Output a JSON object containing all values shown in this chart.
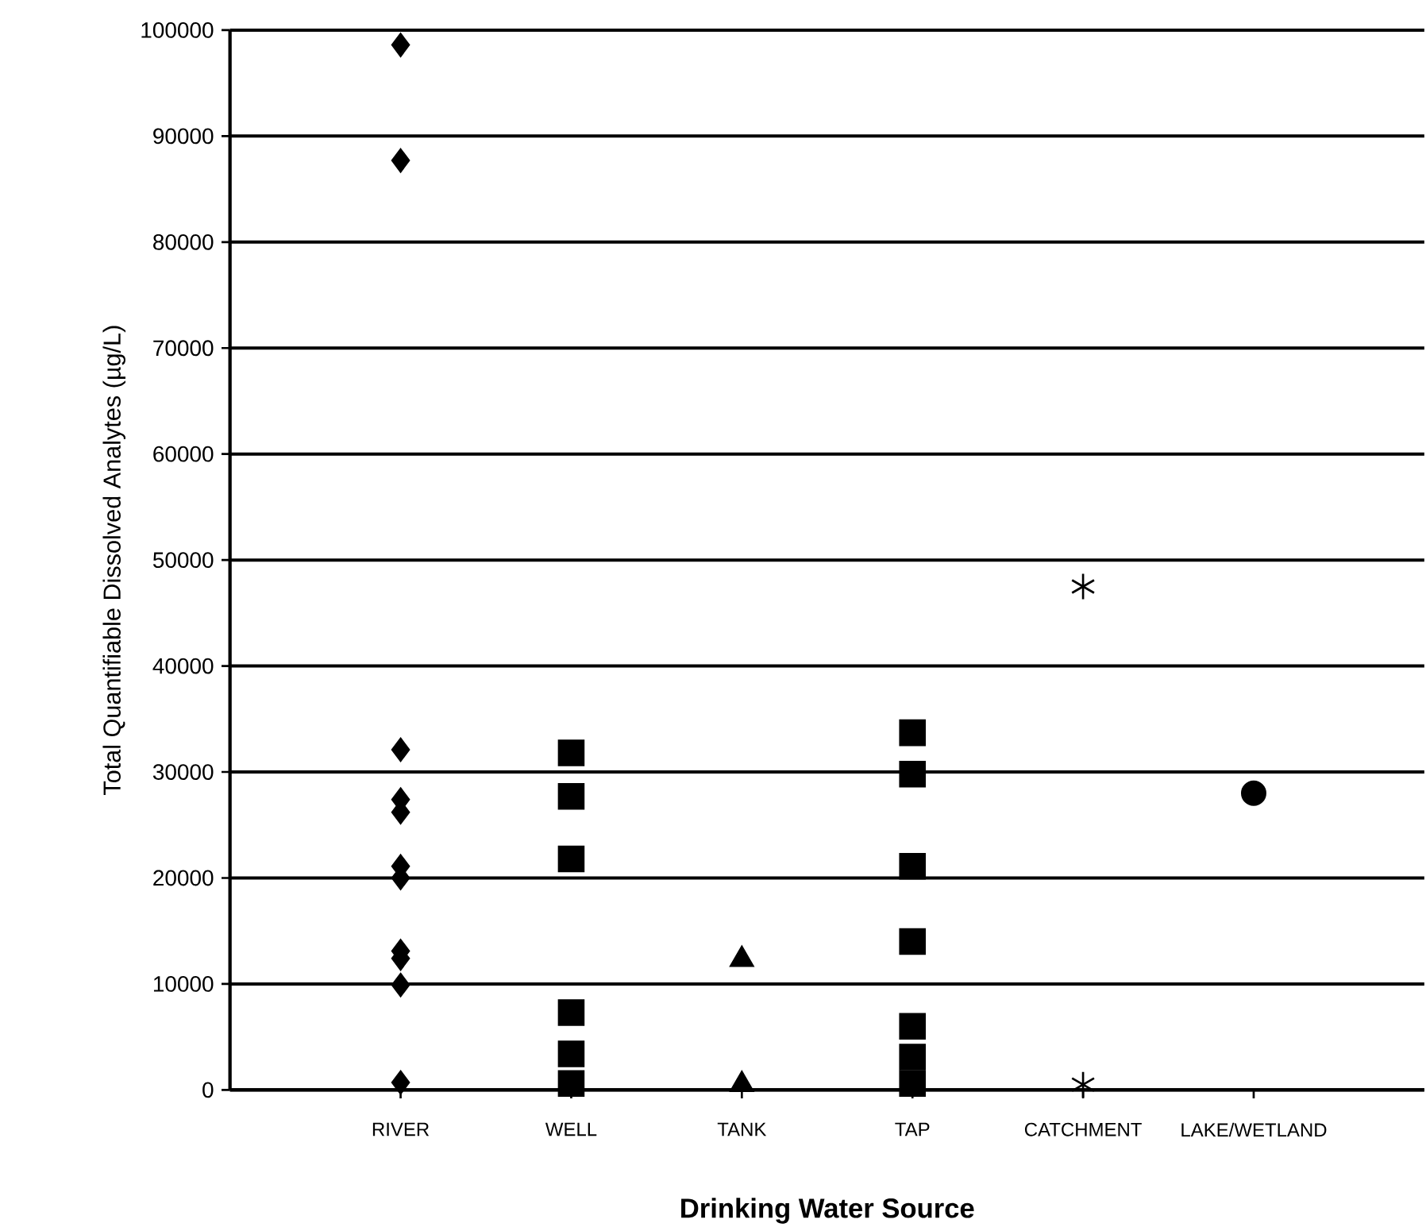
{
  "chart_data": {
    "type": "scatter",
    "xlabel": "Drinking Water Source",
    "ylabel": "Total Quantifiable Dissolved Analytes (µg/L)",
    "categories": [
      "RIVER",
      "WELL",
      "TANK",
      "TAP",
      "CATCHMENT",
      "LAKE/WETLAND"
    ],
    "ylim": [
      0,
      100000
    ],
    "yticks": [
      0,
      10000,
      20000,
      30000,
      40000,
      50000,
      60000,
      70000,
      80000,
      90000,
      100000
    ],
    "grid": "y",
    "series": [
      {
        "color": "#000000",
        "marker": "diamond",
        "x": [
          "RIVER",
          "RIVER",
          "RIVER",
          "RIVER",
          "RIVER",
          "RIVER",
          "RIVER",
          "RIVER",
          "RIVER",
          "RIVER",
          "RIVER"
        ],
        "values": [
          98600,
          87700,
          32100,
          27400,
          26200,
          21100,
          20000,
          13100,
          12400,
          9900,
          700
        ]
      },
      {
        "color": "#000000",
        "marker": "square",
        "x": [
          "WELL",
          "WELL",
          "WELL",
          "WELL",
          "WELL",
          "WELL"
        ],
        "values": [
          31800,
          27700,
          21800,
          7300,
          3400,
          600
        ]
      },
      {
        "color": "#000000",
        "marker": "triangle",
        "x": [
          "TANK",
          "TANK"
        ],
        "values": [
          12300,
          500
        ]
      },
      {
        "color": "#000000",
        "marker": "square",
        "x": [
          "TAP",
          "TAP",
          "TAP",
          "TAP",
          "TAP",
          "TAP",
          "TAP"
        ],
        "values": [
          33700,
          29800,
          21100,
          14000,
          6000,
          3100,
          600
        ]
      },
      {
        "color": "#000000",
        "marker": "cross",
        "x": [
          "CATCHMENT",
          "CATCHMENT"
        ],
        "values": [
          47500,
          500
        ]
      },
      {
        "color": "#000000",
        "marker": "circle",
        "x": [
          "LAKE/WETLAND"
        ],
        "values": [
          28000
        ]
      }
    ]
  }
}
